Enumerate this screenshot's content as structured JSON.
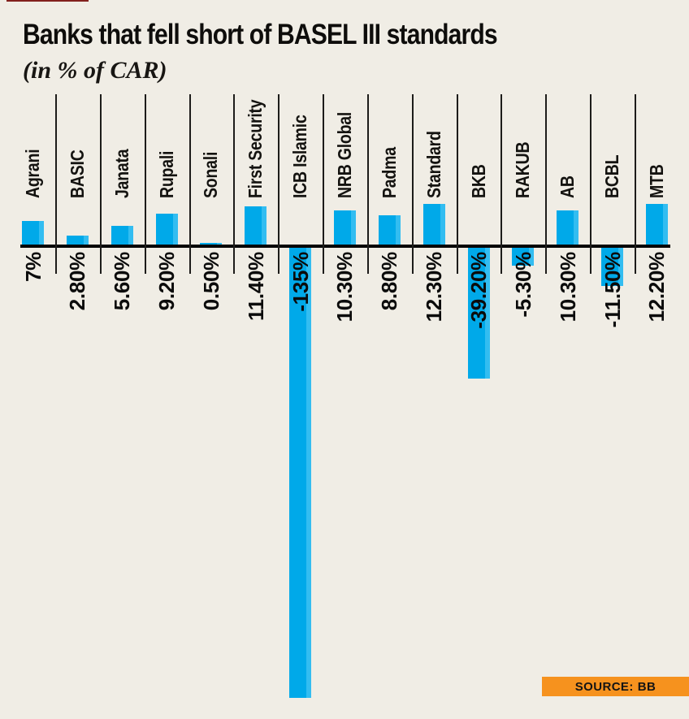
{
  "header": {
    "title": "Banks that fell short of BASEL III standards",
    "subtitle": "(in % of CAR)"
  },
  "chart_data": {
    "type": "bar",
    "title": "Banks that fell short of BASEL III standards",
    "subtitle": "(in % of CAR)",
    "unit": "% of CAR",
    "categories": [
      "Agrani",
      "BASIC",
      "Janata",
      "Rupali",
      "Sonali",
      "First Security",
      "ICB Islamic",
      "NRB Global",
      "Padma",
      "Standard",
      "BKB",
      "RAKUB",
      "AB",
      "BCBL",
      "MTB"
    ],
    "values": [
      7,
      2.8,
      5.6,
      9.2,
      0.5,
      11.4,
      -135,
      10.3,
      8.8,
      12.3,
      -39.2,
      -5.3,
      10.3,
      -11.5,
      12.2
    ],
    "value_labels": [
      "7%",
      "2.80%",
      "5.60%",
      "9.20%",
      "0.50%",
      "11.40%",
      "-135%",
      "10.30%",
      "8.80%",
      "12.30%",
      "-39.20%",
      "-5.30%",
      "10.30%",
      "-11.50%",
      "12.20%"
    ],
    "orientation": "vertical",
    "baseline": 0,
    "grid": "off",
    "legend": "none",
    "category_label_rotation": -90,
    "value_label_rotation": -90,
    "colors": {
      "bar": "#00A9E9",
      "bar_highlight": "#33BDF1",
      "background": "#F0EDE5",
      "axis": "#050505",
      "divider": "#1D1C1A",
      "badge": "#F6921E"
    }
  },
  "source": {
    "label": "SOURCE:",
    "value": "BB"
  }
}
